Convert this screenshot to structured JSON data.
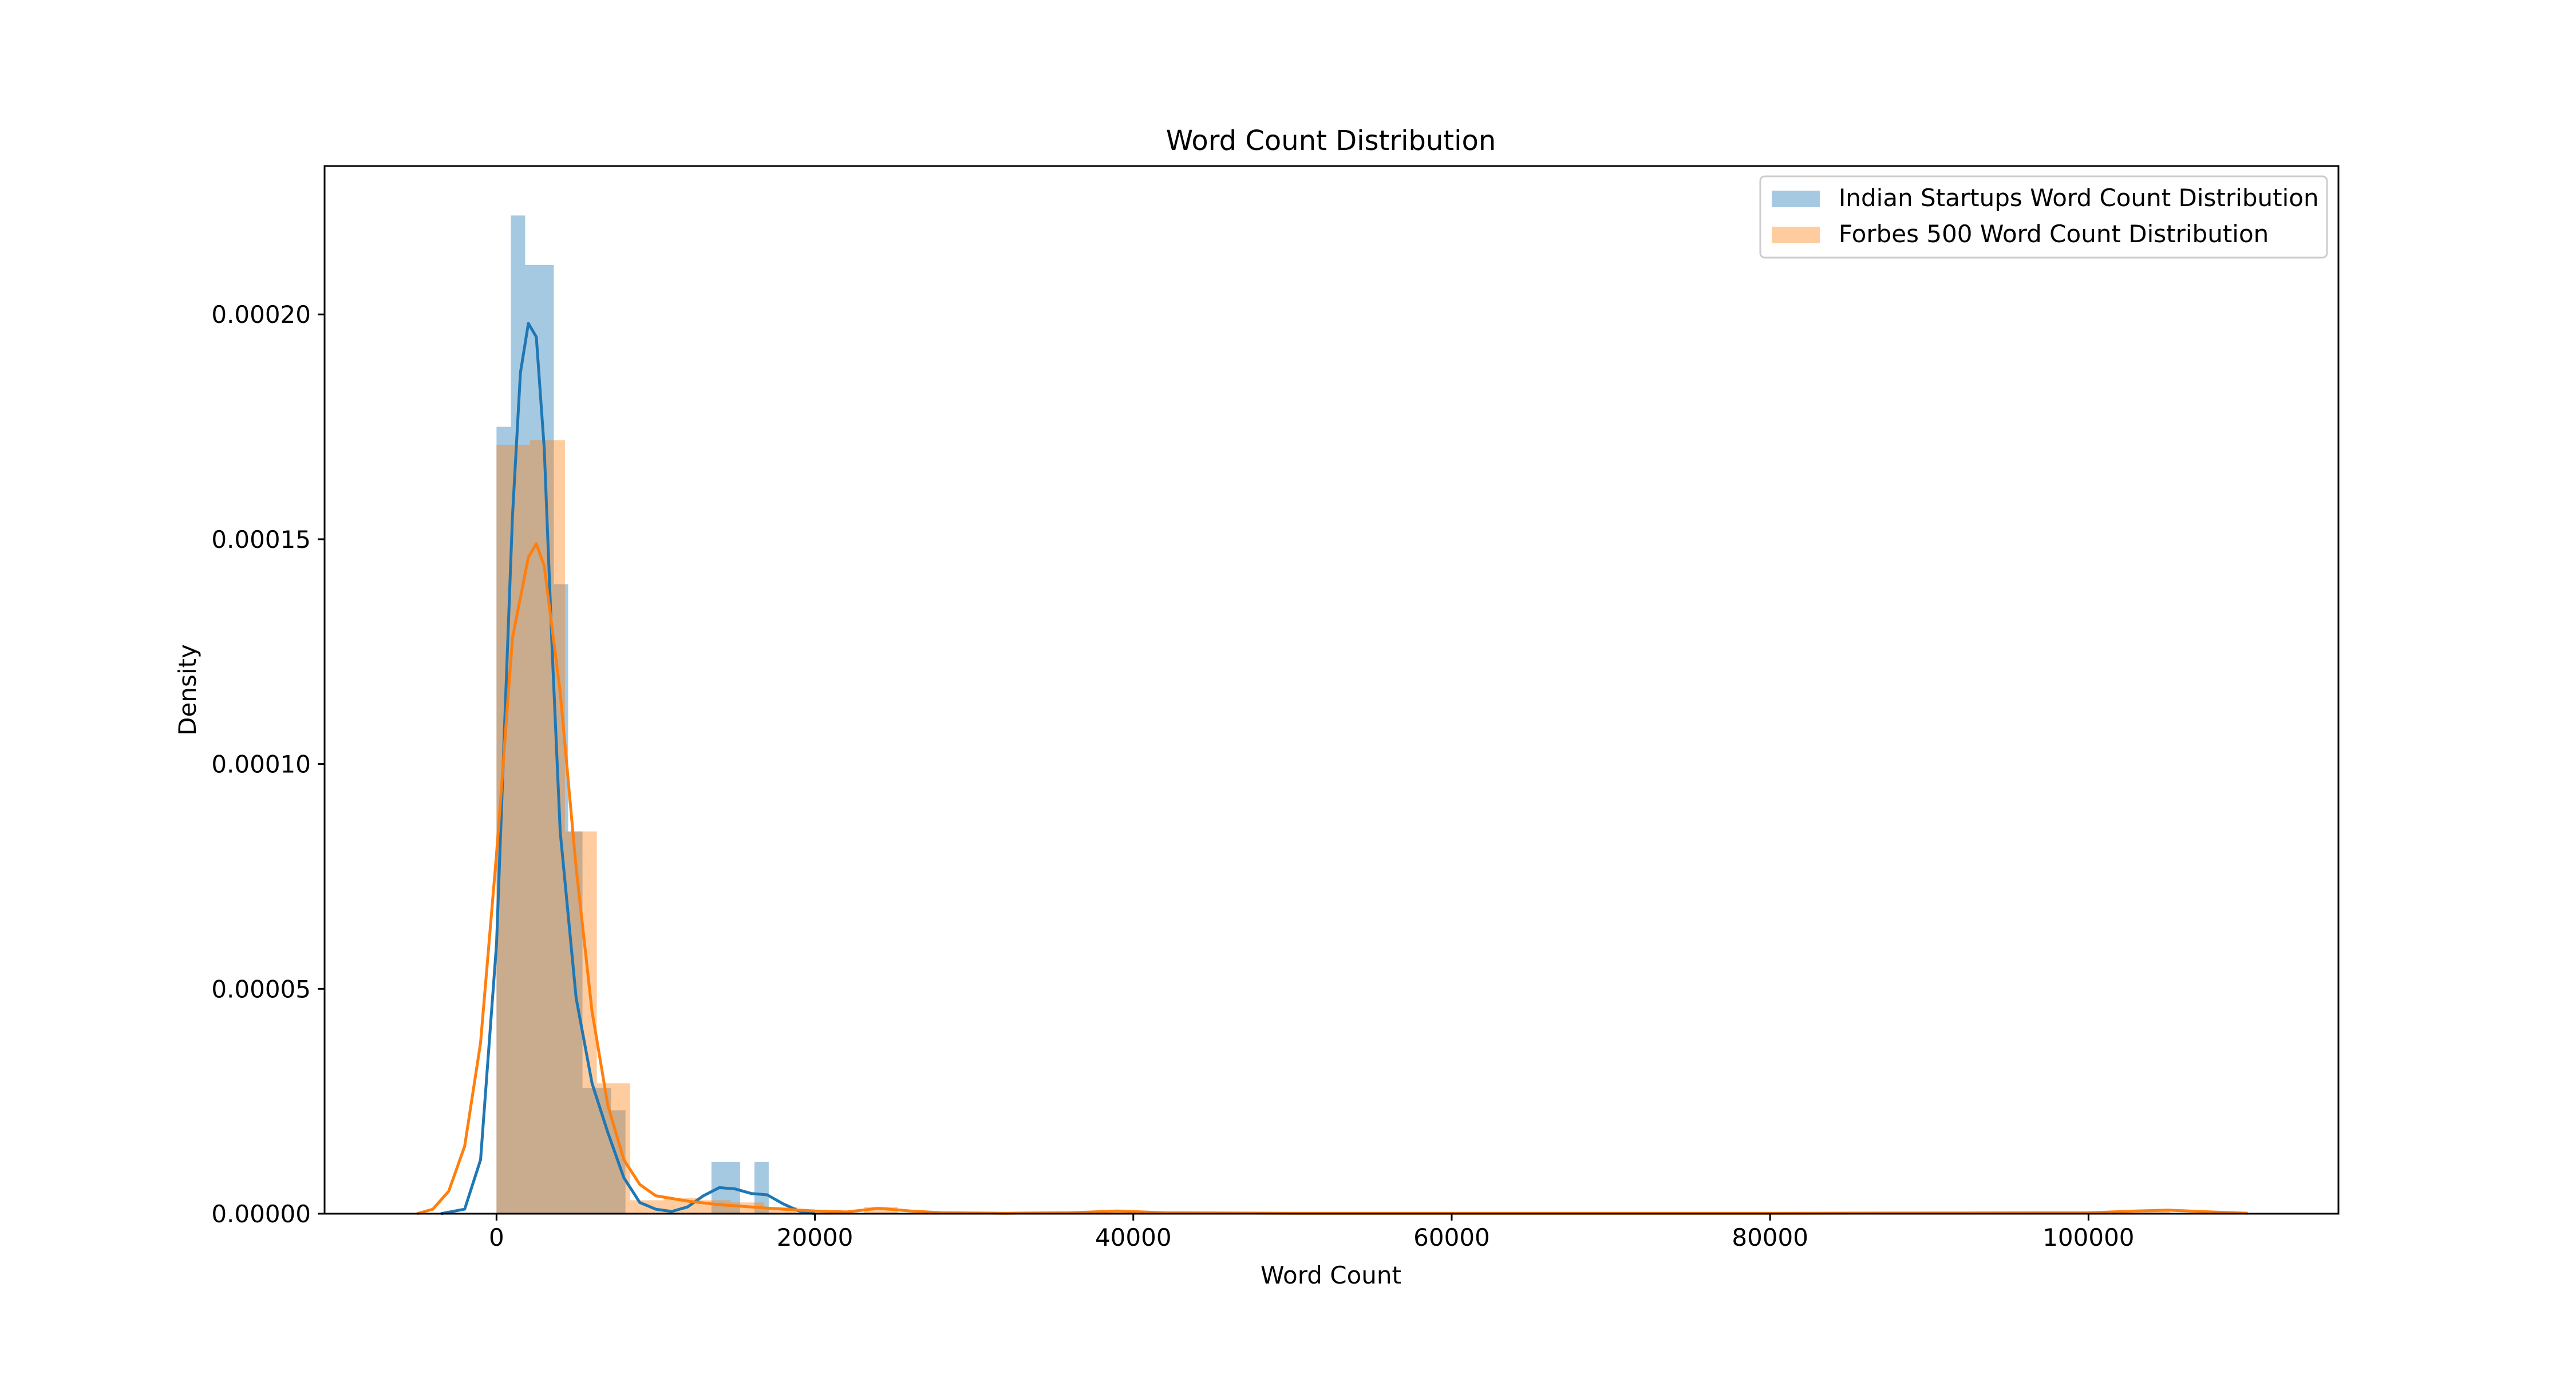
{
  "chart_data": {
    "type": "histogram",
    "title": "Word Count Distribution",
    "xlabel": "Word Count",
    "ylabel": "Density",
    "xlim": [
      -10800,
      115700
    ],
    "ylim": [
      0,
      0.000233
    ],
    "xticks": [
      0,
      20000,
      40000,
      60000,
      80000,
      100000
    ],
    "xtick_labels": [
      "0",
      "20000",
      "40000",
      "60000",
      "80000",
      "100000"
    ],
    "yticks": [
      0,
      5e-05,
      0.0001,
      0.00015,
      0.0002
    ],
    "ytick_labels": [
      "0.00000",
      "0.00005",
      "0.00010",
      "0.00015",
      "0.00020"
    ],
    "grid": false,
    "legend_position": "upper right",
    "series": [
      {
        "name": "Indian Startups Word Count Distribution",
        "color": "#1f77b4",
        "bins": [
          {
            "x0": 0,
            "x1": 900,
            "density": 0.000175
          },
          {
            "x0": 900,
            "x1": 1800,
            "density": 0.000222
          },
          {
            "x0": 1800,
            "x1": 3600,
            "density": 0.000211
          },
          {
            "x0": 3600,
            "x1": 4500,
            "density": 0.00014
          },
          {
            "x0": 4500,
            "x1": 5400,
            "density": 8.5e-05
          },
          {
            "x0": 5400,
            "x1": 7200,
            "density": 2.8e-05
          },
          {
            "x0": 7200,
            "x1": 8100,
            "density": 2.3e-05
          },
          {
            "x0": 13500,
            "x1": 15300,
            "density": 1.15e-05
          },
          {
            "x0": 16200,
            "x1": 17100,
            "density": 1.15e-05
          }
        ],
        "kde": [
          [
            -3500,
            0
          ],
          [
            -2000,
            1e-06
          ],
          [
            -1000,
            1.2e-05
          ],
          [
            0,
            6e-05
          ],
          [
            500,
            0.000108
          ],
          [
            1000,
            0.000155
          ],
          [
            1500,
            0.000187
          ],
          [
            2000,
            0.000198
          ],
          [
            2500,
            0.000195
          ],
          [
            3000,
            0.00017
          ],
          [
            3500,
            0.000125
          ],
          [
            4000,
            8.5e-05
          ],
          [
            5000,
            4.8e-05
          ],
          [
            6000,
            2.9e-05
          ],
          [
            7000,
            1.8e-05
          ],
          [
            8000,
            8e-06
          ],
          [
            9000,
            2.5e-06
          ],
          [
            10000,
            1e-06
          ],
          [
            11000,
            5e-07
          ],
          [
            12000,
            1.5e-06
          ],
          [
            13000,
            4e-06
          ],
          [
            14000,
            5.8e-06
          ],
          [
            15000,
            5.5e-06
          ],
          [
            16000,
            4.5e-06
          ],
          [
            17000,
            4.2e-06
          ],
          [
            18000,
            2.2e-06
          ],
          [
            19000,
            6e-07
          ],
          [
            20000,
            0
          ]
        ]
      },
      {
        "name": "Forbes 500 Word Count Distribution",
        "color": "#ff7f0e",
        "bins": [
          {
            "x0": 0,
            "x1": 2100,
            "density": 0.000171
          },
          {
            "x0": 2100,
            "x1": 4300,
            "density": 0.000172
          },
          {
            "x0": 4300,
            "x1": 6300,
            "density": 8.5e-05
          },
          {
            "x0": 6300,
            "x1": 8400,
            "density": 2.9e-05
          },
          {
            "x0": 8400,
            "x1": 10500,
            "density": 3e-06
          },
          {
            "x0": 10500,
            "x1": 12600,
            "density": 3.5e-06
          },
          {
            "x0": 12600,
            "x1": 14700,
            "density": 3e-06
          },
          {
            "x0": 14700,
            "x1": 16800,
            "density": 2.5e-06
          },
          {
            "x0": 16800,
            "x1": 18900,
            "density": 1.5e-06
          },
          {
            "x0": 23100,
            "x1": 25200,
            "density": 1.5e-06
          },
          {
            "x0": 37800,
            "x1": 39900,
            "density": 6e-07
          },
          {
            "x0": 103000,
            "x1": 105100,
            "density": 6e-07
          }
        ],
        "kde": [
          [
            -5000,
            0
          ],
          [
            -4000,
            1e-06
          ],
          [
            -3000,
            5e-06
          ],
          [
            -2000,
            1.5e-05
          ],
          [
            -1000,
            3.8e-05
          ],
          [
            0,
            8e-05
          ],
          [
            1000,
            0.000128
          ],
          [
            2000,
            0.000146
          ],
          [
            2500,
            0.000149
          ],
          [
            3000,
            0.000144
          ],
          [
            4000,
            0.000116
          ],
          [
            5000,
            7.7e-05
          ],
          [
            6000,
            4.5e-05
          ],
          [
            7000,
            2.4e-05
          ],
          [
            8000,
            1.2e-05
          ],
          [
            9000,
            6.5e-06
          ],
          [
            10000,
            4e-06
          ],
          [
            12000,
            2.8e-06
          ],
          [
            14000,
            2e-06
          ],
          [
            16000,
            1.5e-06
          ],
          [
            18000,
            1e-06
          ],
          [
            20000,
            6e-07
          ],
          [
            22000,
            4e-07
          ],
          [
            24000,
            1.2e-06
          ],
          [
            26000,
            6e-07
          ],
          [
            28000,
            2e-07
          ],
          [
            32000,
            1e-07
          ],
          [
            36000,
            2e-07
          ],
          [
            39000,
            6e-07
          ],
          [
            42000,
            2e-07
          ],
          [
            50000,
            1e-07
          ],
          [
            60000,
            1e-07
          ],
          [
            80000,
            1e-07
          ],
          [
            100000,
            2e-07
          ],
          [
            103000,
            6e-07
          ],
          [
            105000,
            8e-07
          ],
          [
            107000,
            5e-07
          ],
          [
            110000,
            1e-07
          ]
        ]
      }
    ]
  }
}
